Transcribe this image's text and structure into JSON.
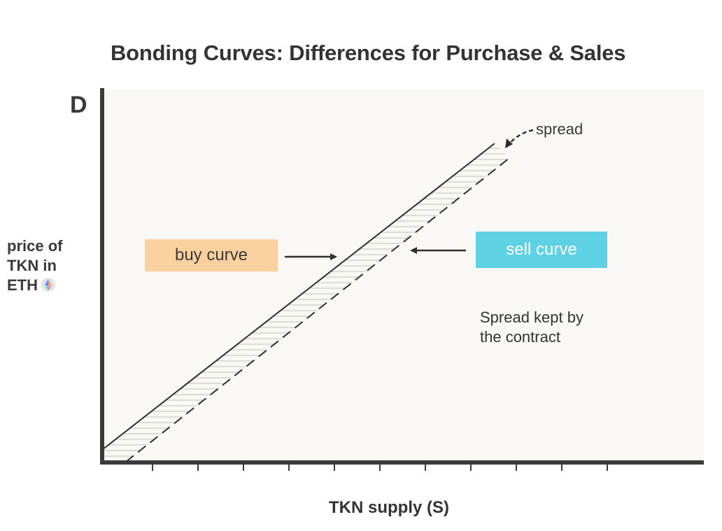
{
  "title": "Bonding Curves: Differences for Purchase & Sales",
  "panel_letter": "D",
  "y_axis_label": [
    "price of",
    "TKN in",
    "ETH"
  ],
  "x_axis_label": "TKN supply (S)",
  "buy_curve_label": "buy curve",
  "sell_curve_label": "sell curve",
  "spread_label": "spread",
  "spread_note": [
    "Spread kept by",
    "the contract"
  ],
  "colors": {
    "buy_tag": "#fbd09f",
    "sell_tag": "#5ed2e4",
    "plot_background": "#faf8f5",
    "axis": "#3a3a3a"
  },
  "icons": {
    "eth": "ethereum-icon"
  }
}
